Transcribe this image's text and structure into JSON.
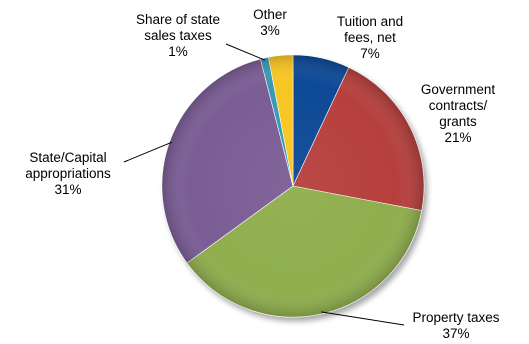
{
  "chart_data": {
    "type": "pie",
    "title": "",
    "slices": [
      {
        "name": "Tuition and fees, net",
        "label_lines": [
          "Tuition and",
          "fees, net"
        ],
        "value": 7,
        "value_label": "7%",
        "color": "#0a4a97"
      },
      {
        "name": "Government contracts/ grants",
        "label_lines": [
          "Government",
          "contracts/",
          "grants"
        ],
        "value": 21,
        "value_label": "21%",
        "color": "#b6403d"
      },
      {
        "name": "Property taxes",
        "label_lines": [
          "Property taxes"
        ],
        "value": 37,
        "value_label": "37%",
        "color": "#8fae4e"
      },
      {
        "name": "State/Capital appropriations",
        "label_lines": [
          "State/Capital",
          "appropriations"
        ],
        "value": 31,
        "value_label": "31%",
        "color": "#7a5d95"
      },
      {
        "name": "Share of state sales taxes",
        "label_lines": [
          "Share of state",
          "sales taxes"
        ],
        "value": 1,
        "value_label": "1%",
        "color": "#3799b5"
      },
      {
        "name": "Other",
        "label_lines": [
          "Other"
        ],
        "value": 3,
        "value_label": "3%",
        "color": "#f8c624"
      }
    ],
    "start_angle_deg": 0,
    "direction": "clockwise",
    "legend": "none",
    "style": "3d-shaded"
  }
}
